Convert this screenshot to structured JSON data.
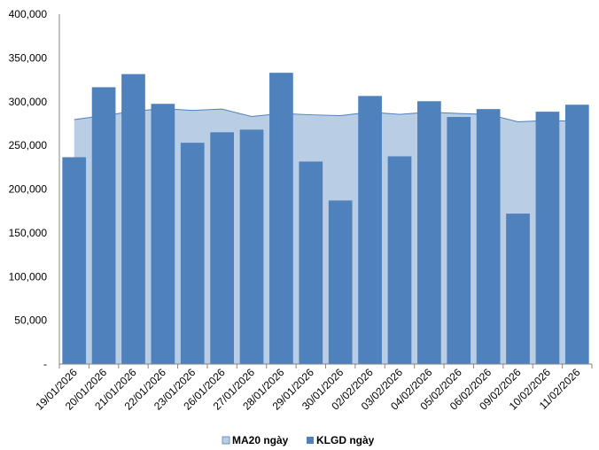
{
  "chart_data": {
    "type": "bar",
    "categories": [
      "19/01/2026",
      "20/01/2026",
      "21/01/2026",
      "22/01/2026",
      "23/01/2026",
      "26/01/2026",
      "27/01/2026",
      "28/01/2026",
      "29/01/2026",
      "30/01/2026",
      "02/02/2026",
      "03/02/2026",
      "04/02/2026",
      "05/02/2026",
      "06/02/2026",
      "09/02/2026",
      "10/02/2026",
      "11/02/2026"
    ],
    "series": [
      {
        "name": "KLGD ngày",
        "type": "bar",
        "color": "#4f81bd",
        "values": [
          236500,
          316500,
          331500,
          297500,
          253000,
          265000,
          268000,
          333000,
          231500,
          187000,
          306500,
          237500,
          300500,
          282500,
          291500,
          172000,
          288500,
          296500
        ]
      },
      {
        "name": "MA20 ngày",
        "type": "area",
        "color": "#b9cde5",
        "line_color": "#4f81bd",
        "values": [
          279500,
          284000,
          289000,
          292000,
          290000,
          291500,
          283000,
          286500,
          285000,
          284000,
          288000,
          285500,
          288000,
          286500,
          285500,
          277000,
          278500,
          277500
        ]
      }
    ],
    "y_ticks": [
      "-",
      "50,000",
      "100,000",
      "150,000",
      "200,000",
      "250,000",
      "300,000",
      "350,000",
      "400,000"
    ],
    "ylim": [
      0,
      400000
    ],
    "grid": false,
    "legend_position": "bottom"
  }
}
